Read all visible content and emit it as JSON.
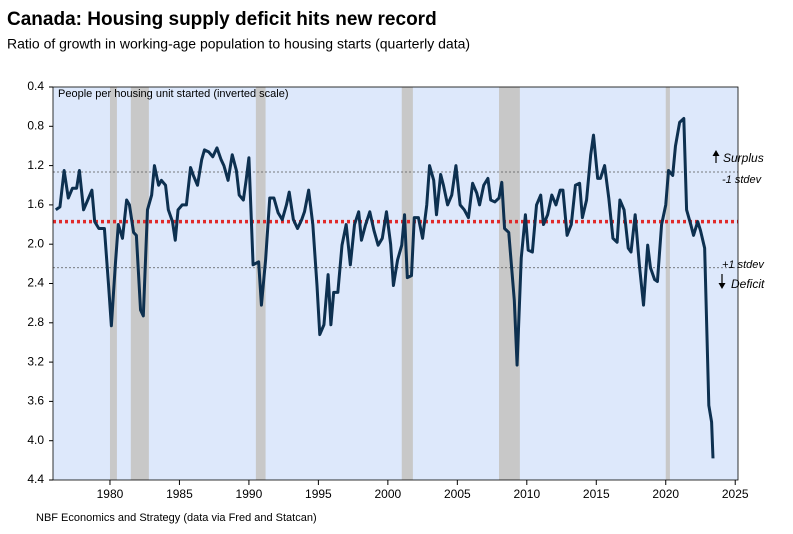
{
  "chart_data": {
    "type": "line",
    "title": "Canada: Housing supply deficit hits new record",
    "subtitle": "Ratio of growth in working-age population to housing starts (quarterly data)",
    "source": "NBF Economics and Strategy (data via Fred and Statcan)",
    "annotations": {
      "note": "People per housing unit started (inverted scale)",
      "surplus": "Surplus",
      "minus_stdev": "-1 stdev",
      "plus_stdev": "+1 stdev",
      "deficit": "Deficit"
    },
    "inverted_y": true,
    "background": "#dde8fb",
    "xlim": [
      1975.9,
      2025.2
    ],
    "xticks": [
      1980,
      1985,
      1990,
      1995,
      2000,
      2005,
      2010,
      2015,
      2020,
      2025
    ],
    "ylim": [
      0.4,
      4.4
    ],
    "yticks": [
      0.4,
      0.8,
      1.2,
      1.6,
      {
        "value": 2,
        "label": "2.0"
      },
      2.4,
      2.8,
      3.2,
      3.6,
      {
        "value": 4,
        "label": "4.0"
      },
      4.4
    ],
    "shaded_periods": {
      "color": "#c8c8c8",
      "ranges": [
        [
          1980.0,
          1980.5
        ],
        [
          1981.5,
          1982.8
        ],
        [
          1990.5,
          1991.2
        ],
        [
          2001.0,
          2001.8
        ],
        [
          2008.0,
          2009.5
        ],
        [
          2020.0,
          2020.3
        ]
      ]
    },
    "reference_lines": [
      {
        "value": 1.77,
        "color": "#e02a2a",
        "style": "dotted"
      },
      {
        "value": 1.265,
        "color": "#555555",
        "style": "dashed"
      },
      {
        "value": 2.24,
        "color": "#555555",
        "style": "dashed"
      }
    ],
    "x": [
      1976.1,
      1976.4,
      1976.7,
      1977.0,
      1977.3,
      1977.6,
      1977.8,
      1978.1,
      1978.4,
      1978.7,
      1978.9,
      1979.2,
      1979.6,
      1979.9,
      1980.1,
      1980.4,
      1980.6,
      1980.9,
      1981.2,
      1981.4,
      1981.7,
      1981.9,
      1982.2,
      1982.4,
      1982.7,
      1983.0,
      1983.2,
      1983.5,
      1983.7,
      1984.0,
      1984.2,
      1984.5,
      1984.7,
      1984.9,
      1985.2,
      1985.5,
      1985.8,
      1986.0,
      1986.3,
      1986.6,
      1986.8,
      1987.1,
      1987.4,
      1987.7,
      1988.0,
      1988.2,
      1988.5,
      1988.8,
      1989.1,
      1989.3,
      1989.6,
      1989.8,
      1990.0,
      1990.3,
      1990.7,
      1990.9,
      1991.2,
      1991.5,
      1991.8,
      1992.1,
      1992.4,
      1992.7,
      1992.9,
      1993.2,
      1993.5,
      1993.8,
      1994.0,
      1994.3,
      1994.6,
      1994.9,
      1995.1,
      1995.4,
      1995.7,
      1995.9,
      1996.1,
      1996.4,
      1996.7,
      1997.0,
      1997.3,
      1997.6,
      1997.9,
      1998.1,
      1998.4,
      1998.7,
      1999.0,
      1999.3,
      1999.6,
      1999.9,
      2000.2,
      2000.4,
      2000.7,
      2001.0,
      2001.2,
      2001.4,
      2001.7,
      2001.9,
      2002.2,
      2002.5,
      2002.8,
      2003.0,
      2003.3,
      2003.5,
      2003.8,
      2004.0,
      2004.3,
      2004.6,
      2004.9,
      2005.2,
      2005.5,
      2005.8,
      2006.1,
      2006.4,
      2006.6,
      2006.9,
      2007.2,
      2007.4,
      2007.7,
      2008.0,
      2008.2,
      2008.4,
      2008.7,
      2009.1,
      2009.3,
      2009.6,
      2009.9,
      2010.1,
      2010.4,
      2010.7,
      2011.0,
      2011.2,
      2011.5,
      2011.8,
      2012.1,
      2012.4,
      2012.6,
      2012.9,
      2013.2,
      2013.5,
      2013.8,
      2014.0,
      2014.3,
      2014.6,
      2014.8,
      2015.1,
      2015.3,
      2015.6,
      2015.9,
      2016.2,
      2016.5,
      2016.7,
      2017.0,
      2017.3,
      2017.5,
      2017.8,
      2018.1,
      2018.4,
      2018.7,
      2018.9,
      2019.2,
      2019.4,
      2019.7,
      2020.0,
      2020.2,
      2020.5,
      2020.7,
      2021.0,
      2021.3,
      2021.5,
      2021.8,
      2022.0,
      2022.3,
      2022.5,
      2022.8,
      2023.1,
      2023.3,
      2023.4
    ],
    "series": [
      {
        "name": "People per housing unit started",
        "color": "#0d3050",
        "values": [
          1.65,
          1.62,
          1.25,
          1.53,
          1.43,
          1.43,
          1.25,
          1.65,
          1.55,
          1.45,
          1.77,
          1.84,
          1.84,
          2.42,
          2.83,
          2.18,
          1.8,
          1.94,
          1.55,
          1.6,
          1.88,
          1.91,
          2.67,
          2.73,
          1.65,
          1.5,
          1.2,
          1.4,
          1.35,
          1.4,
          1.65,
          1.77,
          1.96,
          1.65,
          1.6,
          1.6,
          1.22,
          1.3,
          1.4,
          1.14,
          1.04,
          1.06,
          1.11,
          1.02,
          1.14,
          1.2,
          1.35,
          1.09,
          1.25,
          1.5,
          1.55,
          1.35,
          1.12,
          2.21,
          2.18,
          2.62,
          2.16,
          1.53,
          1.53,
          1.68,
          1.75,
          1.6,
          1.47,
          1.75,
          1.84,
          1.75,
          1.67,
          1.45,
          1.8,
          2.42,
          2.92,
          2.82,
          2.31,
          2.82,
          2.49,
          2.49,
          2.01,
          1.8,
          2.21,
          1.8,
          1.67,
          1.96,
          1.8,
          1.67,
          1.86,
          2.01,
          1.94,
          1.67,
          2.0,
          2.42,
          2.16,
          2.01,
          1.7,
          2.34,
          2.32,
          1.73,
          1.73,
          1.94,
          1.6,
          1.2,
          1.35,
          1.7,
          1.29,
          1.4,
          1.6,
          1.5,
          1.2,
          1.6,
          1.65,
          1.73,
          1.38,
          1.48,
          1.6,
          1.4,
          1.33,
          1.55,
          1.57,
          1.53,
          1.37,
          1.84,
          1.88,
          2.57,
          3.23,
          2.14,
          1.7,
          2.06,
          2.08,
          1.6,
          1.5,
          1.8,
          1.7,
          1.5,
          1.6,
          1.45,
          1.45,
          1.91,
          1.8,
          1.4,
          1.38,
          1.73,
          1.55,
          1.09,
          0.89,
          1.33,
          1.33,
          1.2,
          1.53,
          1.94,
          1.98,
          1.55,
          1.65,
          2.04,
          2.08,
          1.7,
          2.21,
          2.62,
          2.01,
          2.24,
          2.36,
          2.38,
          1.8,
          1.6,
          1.25,
          1.3,
          1.0,
          0.76,
          0.72,
          1.65,
          1.8,
          1.91,
          1.77,
          1.86,
          2.04,
          3.64,
          3.81,
          4.18
        ]
      }
    ]
  }
}
